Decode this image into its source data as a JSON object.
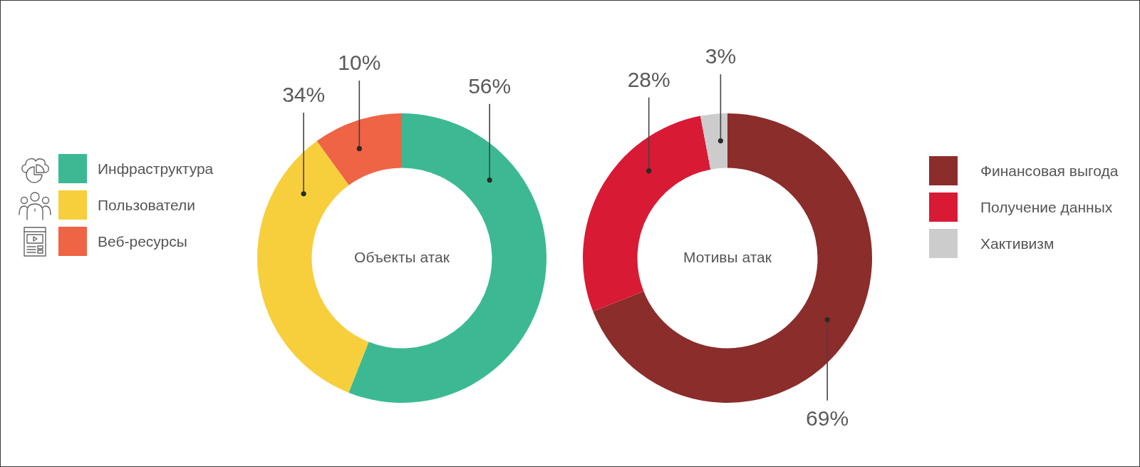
{
  "chart_data": [
    {
      "type": "donut",
      "title": "Объекты атак",
      "categories": [
        "Инфраструктура",
        "Пользователи",
        "Веб-ресурсы"
      ],
      "values": [
        56,
        34,
        10
      ],
      "colors": [
        "#3cb993",
        "#f7cf3c",
        "#ee6444"
      ],
      "value_labels": [
        "56%",
        "34%",
        "10%"
      ],
      "legend": "left"
    },
    {
      "type": "donut",
      "title": "Мотивы атак",
      "categories": [
        "Финансовая выгода",
        "Получение данных",
        "Хактивизм"
      ],
      "values": [
        69,
        28,
        3
      ],
      "colors": [
        "#8b2d2a",
        "#d81a35",
        "#cccccc"
      ],
      "value_labels": [
        "69%",
        "28%",
        "3%"
      ],
      "legend": "right"
    }
  ]
}
